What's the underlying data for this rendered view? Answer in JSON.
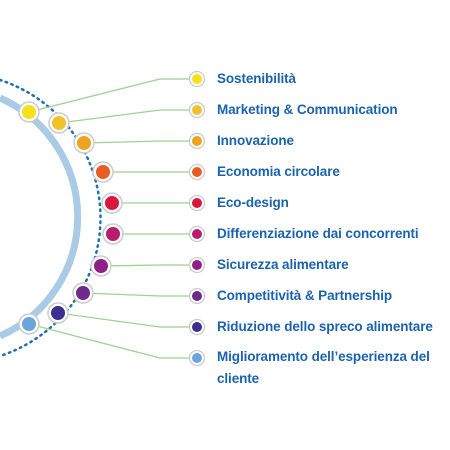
{
  "colors": {
    "inner_ring": "#a9cbe6",
    "outer_dots": "#1f6fb5",
    "connector": "#9ed293",
    "marker_border": "#cccccc",
    "label_text": "#1b63ad"
  },
  "items": [
    {
      "label": "Sostenibilità",
      "color": "#f6e11c"
    },
    {
      "label": "Marketing & Communication",
      "color": "#f2c22e"
    },
    {
      "label": "Innovazione",
      "color": "#efa421"
    },
    {
      "label": "Economia circolare",
      "color": "#e85d24"
    },
    {
      "label": "Eco-design",
      "color": "#d7173f"
    },
    {
      "label": "Differenziazione dai concorrenti",
      "color": "#b81e6e"
    },
    {
      "label": "Sicurezza alimentare",
      "color": "#8e1f86"
    },
    {
      "label": "Competitività & Partnership",
      "color": "#6d2a8b"
    },
    {
      "label": "Riduzione dello spreco alimentare",
      "color": "#3c2f8f"
    },
    {
      "label": "Miglioramento dell’esperienza del cliente",
      "color": "#6aa5dc"
    }
  ]
}
